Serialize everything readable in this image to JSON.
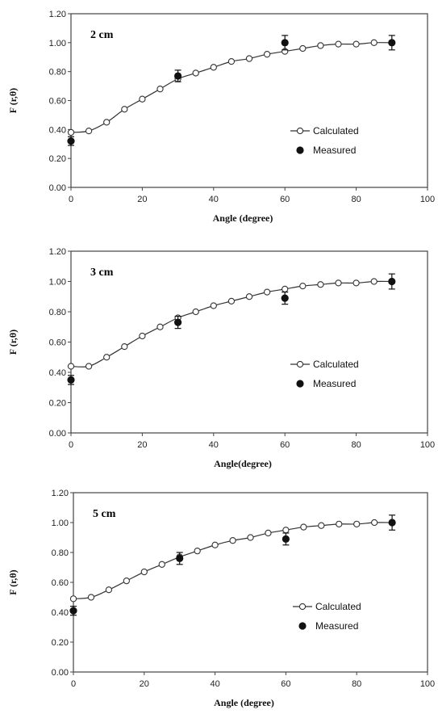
{
  "chart_data": [
    {
      "type": "line",
      "panel_label": "2 cm",
      "xlabel": "Angle (degree)",
      "ylabel": "F (r,θ)",
      "xlim": [
        0,
        100
      ],
      "ylim": [
        0,
        1.2
      ],
      "xticks": [
        "0",
        "20",
        "40",
        "60",
        "80",
        "100"
      ],
      "yticks": [
        "0.00",
        "0.20",
        "0.40",
        "0.60",
        "0.80",
        "1.00",
        "1.20"
      ],
      "legend_position": "right-center",
      "series": [
        {
          "name": "Calculated",
          "marker": "open-circle",
          "x": [
            0,
            5,
            10,
            15,
            20,
            25,
            30,
            35,
            40,
            45,
            50,
            55,
            60,
            65,
            70,
            75,
            80,
            85,
            90
          ],
          "y": [
            0.38,
            0.39,
            0.45,
            0.54,
            0.61,
            0.68,
            0.75,
            0.79,
            0.83,
            0.87,
            0.89,
            0.92,
            0.94,
            0.96,
            0.98,
            0.99,
            0.99,
            1.0,
            1.0
          ]
        },
        {
          "name": "Measured",
          "marker": "filled-circle",
          "x": [
            0,
            30,
            60,
            90
          ],
          "y": [
            0.32,
            0.77,
            1.0,
            1.0
          ],
          "error": [
            0.03,
            0.04,
            0.05,
            0.05
          ]
        }
      ]
    },
    {
      "type": "line",
      "panel_label": "3 cm",
      "xlabel": "Angle(degree)",
      "ylabel": "F (r,θ)",
      "xlim": [
        0,
        100
      ],
      "ylim": [
        0,
        1.2
      ],
      "xticks": [
        "0",
        "20",
        "40",
        "60",
        "80",
        "100"
      ],
      "yticks": [
        "0.00",
        "0.20",
        "0.40",
        "0.60",
        "0.80",
        "1.00",
        "1.20"
      ],
      "legend_position": "right-center",
      "series": [
        {
          "name": "Calculated",
          "marker": "open-circle",
          "x": [
            0,
            5,
            10,
            15,
            20,
            25,
            30,
            35,
            40,
            45,
            50,
            55,
            60,
            65,
            70,
            75,
            80,
            85,
            90
          ],
          "y": [
            0.44,
            0.44,
            0.5,
            0.57,
            0.64,
            0.7,
            0.76,
            0.8,
            0.84,
            0.87,
            0.9,
            0.93,
            0.95,
            0.97,
            0.98,
            0.99,
            0.99,
            1.0,
            1.0
          ]
        },
        {
          "name": "Measured",
          "marker": "filled-circle",
          "x": [
            0,
            30,
            60,
            90
          ],
          "y": [
            0.35,
            0.73,
            0.89,
            1.0
          ],
          "error": [
            0.03,
            0.04,
            0.04,
            0.05
          ]
        }
      ]
    },
    {
      "type": "line",
      "panel_label": "5 cm",
      "xlabel": "Angle (degree)",
      "ylabel": "F (r,θ)",
      "xlim": [
        0,
        100
      ],
      "ylim": [
        0,
        1.2
      ],
      "xticks": [
        "0",
        "20",
        "40",
        "60",
        "80",
        "100"
      ],
      "yticks": [
        "0.00",
        "0.20",
        "0.40",
        "0.60",
        "0.80",
        "1.00",
        "1.20"
      ],
      "legend_position": "right-center",
      "series": [
        {
          "name": "Calculated",
          "marker": "open-circle",
          "x": [
            0,
            5,
            10,
            15,
            20,
            25,
            30,
            35,
            40,
            45,
            50,
            55,
            60,
            65,
            70,
            75,
            80,
            85,
            90
          ],
          "y": [
            0.49,
            0.5,
            0.55,
            0.61,
            0.67,
            0.72,
            0.77,
            0.81,
            0.85,
            0.88,
            0.9,
            0.93,
            0.95,
            0.97,
            0.98,
            0.99,
            0.99,
            1.0,
            1.0
          ]
        },
        {
          "name": "Measured",
          "marker": "filled-circle",
          "x": [
            0,
            30,
            60,
            90
          ],
          "y": [
            0.41,
            0.76,
            0.89,
            1.0
          ],
          "error": [
            0.03,
            0.04,
            0.04,
            0.05
          ]
        }
      ]
    }
  ]
}
